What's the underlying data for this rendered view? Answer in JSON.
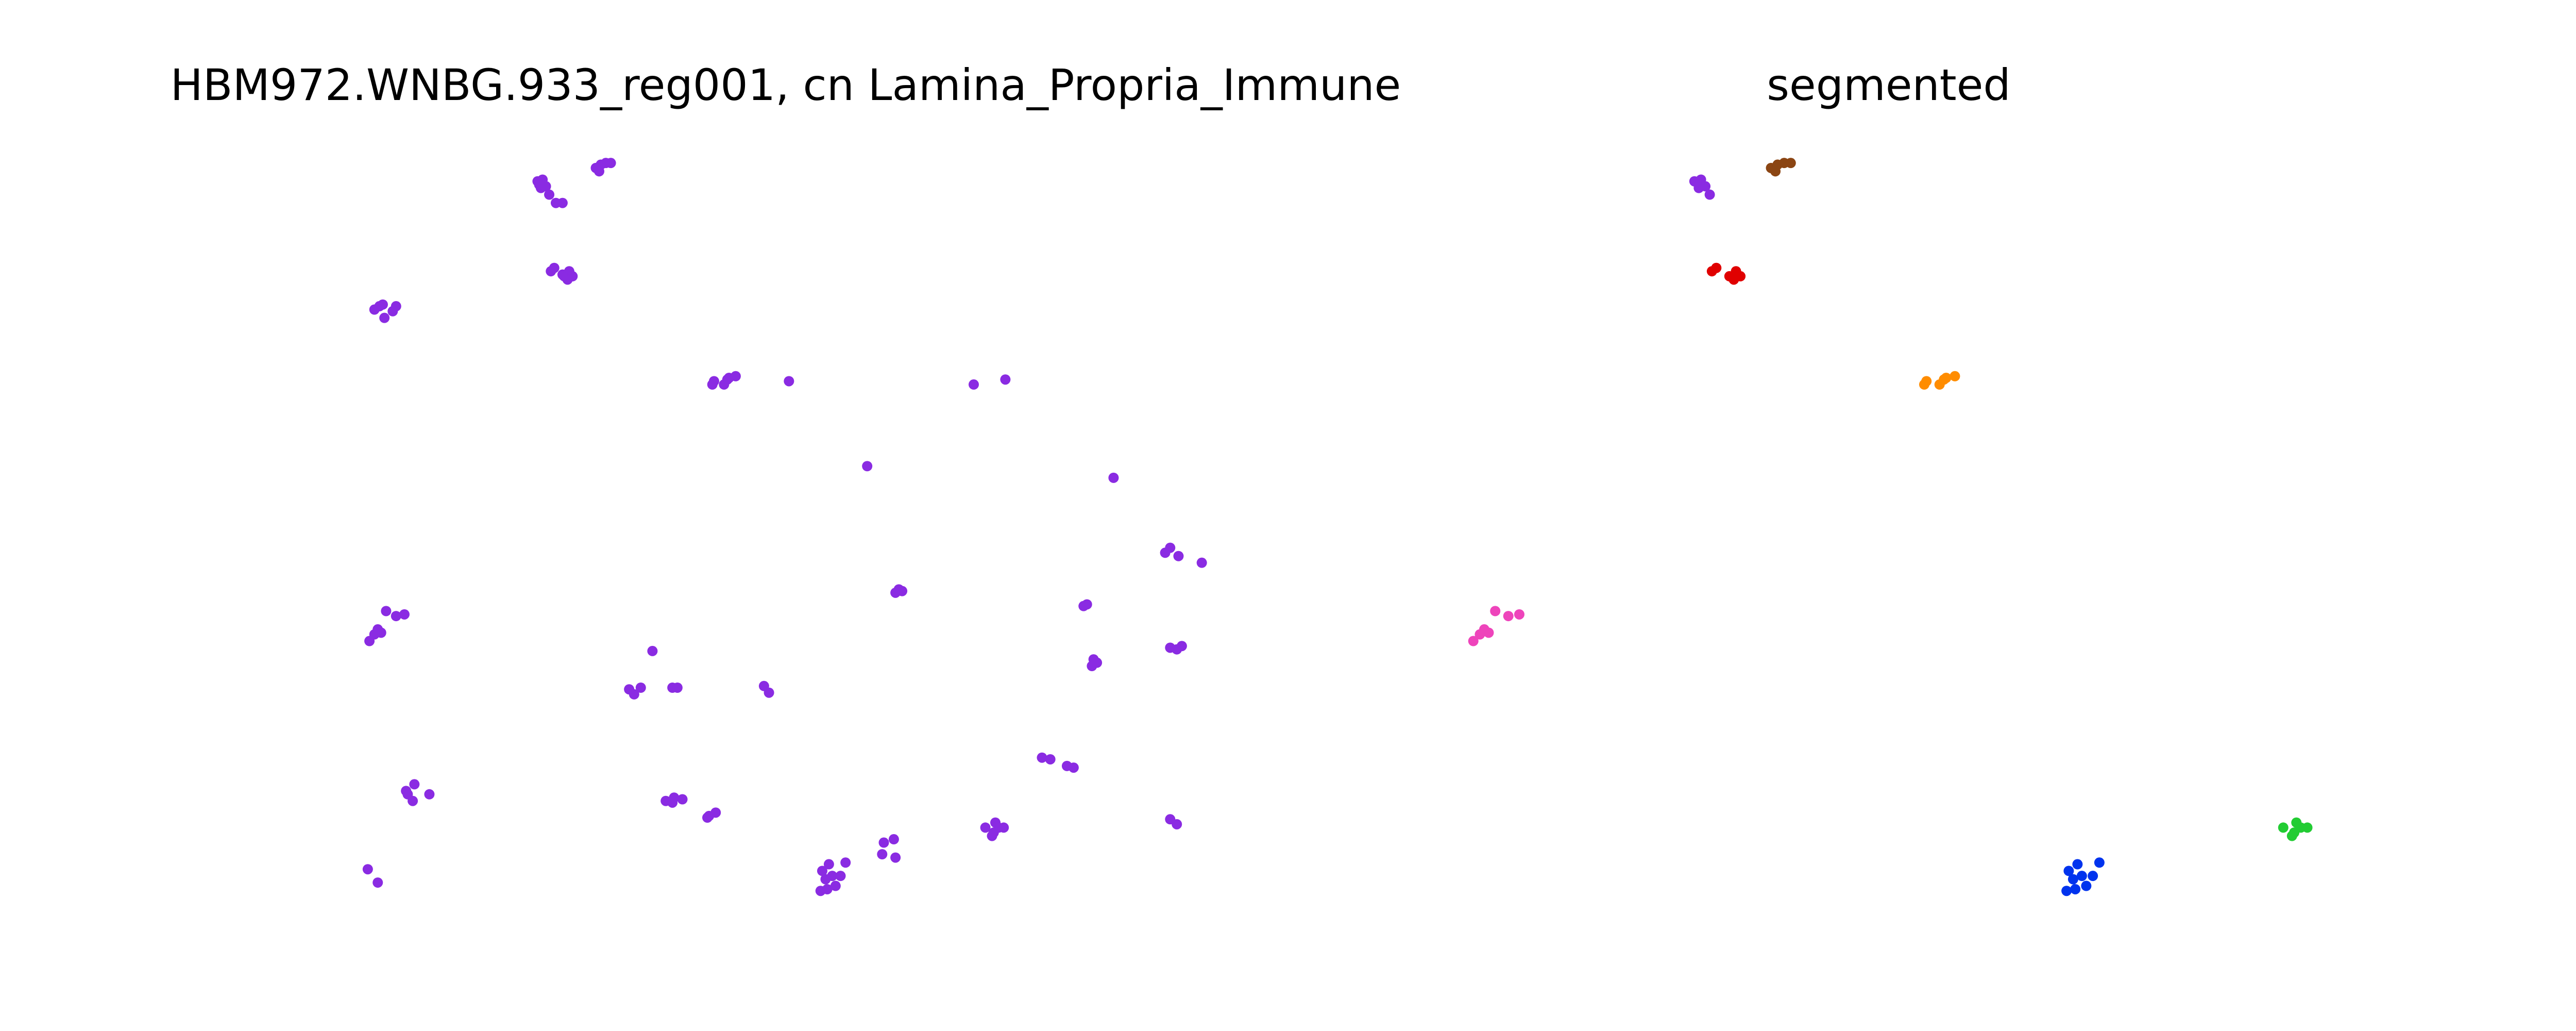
{
  "chart_data": [
    {
      "type": "scatter",
      "title": "HBM972.WNBG.933_reg001, cn Lamina_Propria_Immune",
      "color": "#8a2be2",
      "xlim": [
        200,
        745
      ],
      "ylim": [
        560,
        80
      ],
      "x": [
        323,
        326,
        328,
        325,
        330,
        334,
        338,
        324,
        358,
        361,
        364,
        367,
        360,
        331,
        333,
        339,
        342,
        344,
        341,
        338,
        225,
        228,
        231,
        236,
        238,
        230,
        428,
        429,
        435,
        438,
        442,
        437,
        474,
        585,
        604,
        521,
        669,
        700,
        703,
        708,
        722,
        540,
        538,
        542,
        651,
        653,
        232,
        238,
        243,
        227,
        229,
        222,
        225,
        392,
        378,
        381,
        385,
        404,
        407,
        459,
        462,
        657,
        659,
        656,
        703,
        707,
        710,
        626,
        631,
        641,
        645,
        245,
        249,
        248,
        258,
        244,
        400,
        405,
        410,
        404,
        426,
        430,
        425,
        221,
        227,
        498,
        494,
        500,
        505,
        508,
        493,
        497,
        502,
        496,
        531,
        537,
        530,
        538,
        592,
        597,
        600,
        603,
        598,
        596,
        703,
        707
      ],
      "y": [
        109,
        108,
        112,
        113,
        117,
        122,
        122,
        111,
        101,
        99,
        98,
        98,
        103,
        163,
        161,
        166,
        163,
        166,
        168,
        165,
        186,
        184,
        191,
        187,
        184,
        183,
        231,
        229,
        231,
        227,
        226,
        228,
        229,
        231,
        228,
        280,
        287,
        332,
        329,
        334,
        338,
        354,
        356,
        355,
        364,
        363,
        367,
        370,
        369,
        378,
        380,
        385,
        381,
        391,
        414,
        417,
        413,
        413,
        413,
        412,
        416,
        396,
        398,
        400,
        389,
        390,
        388,
        455,
        456,
        460,
        461,
        477,
        471,
        481,
        477,
        475,
        481,
        479,
        480,
        482,
        490,
        488,
        491,
        522,
        530,
        519,
        523,
        526,
        526,
        518,
        535,
        534,
        532,
        528,
        506,
        504,
        513,
        515,
        497,
        500,
        497,
        497,
        494,
        502,
        492,
        495
      ]
    },
    {
      "type": "scatter",
      "title": "segmented",
      "xlim": [
        199,
        621
      ],
      "ylim": [
        560,
        80
      ],
      "series": [
        {
          "color": "#8a2be2",
          "x": [
            323,
            326,
            328,
            325,
            330
          ],
          "y": [
            109,
            108,
            112,
            113,
            117
          ]
        },
        {
          "color": "#8b4513",
          "x": [
            358,
            361,
            364,
            367,
            360
          ],
          "y": [
            101,
            99,
            98,
            98,
            103
          ]
        },
        {
          "color": "#e00000",
          "x": [
            331,
            333,
            339,
            342,
            344,
            341
          ],
          "y": [
            163,
            161,
            166,
            163,
            166,
            168
          ]
        },
        {
          "color": "#ff8c00",
          "x": [
            428,
            429,
            435,
            438,
            442,
            437
          ],
          "y": [
            231,
            229,
            231,
            227,
            226,
            228
          ]
        },
        {
          "color": "#ee44bb",
          "x": [
            232,
            238,
            243,
            227,
            229,
            222,
            225
          ],
          "y": [
            367,
            370,
            369,
            378,
            380,
            385,
            381
          ]
        },
        {
          "color": "#0033ee",
          "x": [
            498,
            494,
            500,
            505,
            508,
            493,
            497,
            502,
            496
          ],
          "y": [
            519,
            523,
            526,
            526,
            518,
            535,
            534,
            532,
            528
          ]
        },
        {
          "color": "#22cc33",
          "x": [
            592,
            597,
            600,
            603,
            598,
            596
          ],
          "y": [
            497,
            500,
            497,
            497,
            494,
            502
          ]
        }
      ]
    }
  ]
}
